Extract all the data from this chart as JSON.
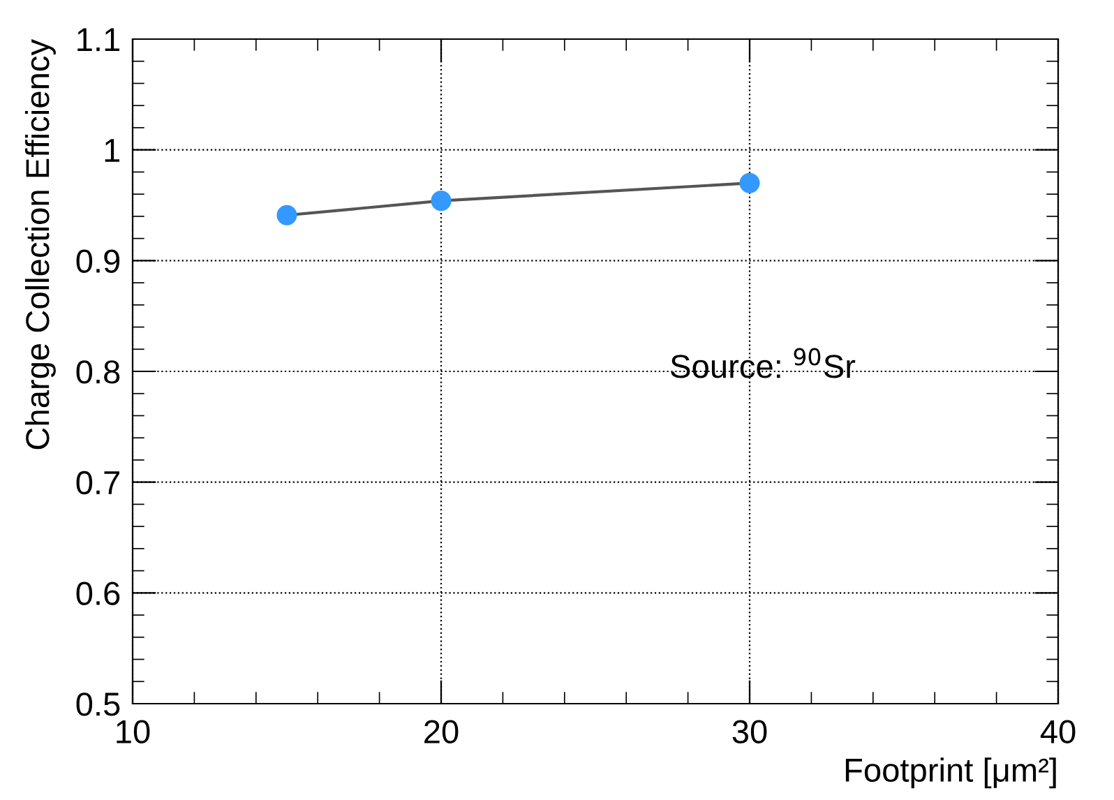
{
  "chart_data": {
    "type": "line",
    "xlabel": "Footprint [μm²]",
    "ylabel": "Charge Collection Efficiency",
    "annotations": [
      "Source: $^{90}$Sr"
    ],
    "x": [
      15,
      20,
      30
    ],
    "series": [
      {
        "color": "#555555",
        "values": [
          0.941,
          0.954,
          0.97
        ],
        "marker": "none"
      },
      {
        "type": "scatter",
        "color": "#3399ff",
        "values": [
          0.941,
          0.954,
          0.97
        ],
        "marker": "circle"
      }
    ],
    "xlim": [
      10,
      40
    ],
    "xticks": [
      10,
      20,
      30,
      40
    ],
    "ylim": [
      0.5,
      1.1
    ],
    "yticks": [
      0.5,
      0.6,
      0.7,
      0.8,
      0.9,
      1,
      1.1
    ],
    "grid": true,
    "line_style": "solid"
  }
}
